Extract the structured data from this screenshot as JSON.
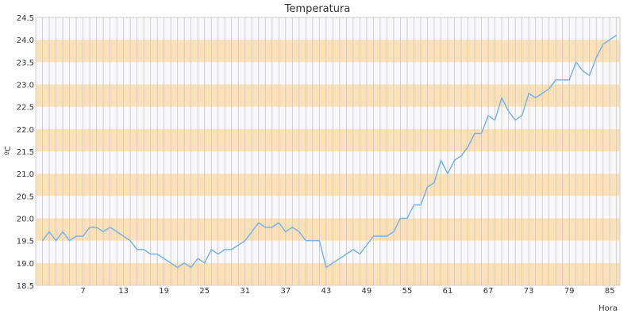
{
  "chart_data": {
    "type": "line",
    "title": "Temperatura",
    "xlabel": "Hora",
    "ylabel": "ºC",
    "ylim": [
      18.5,
      24.5
    ],
    "xlim": [
      0,
      86.5
    ],
    "yticks": [
      "18.5",
      "19.0",
      "19.5",
      "20.0",
      "20.5",
      "21.0",
      "21.5",
      "22.0",
      "22.5",
      "23.0",
      "23.5",
      "24.0",
      "24.5"
    ],
    "xticks": [
      7,
      13,
      19,
      25,
      31,
      37,
      43,
      49,
      55,
      61,
      67,
      73,
      79,
      85
    ],
    "grid": true,
    "colors": {
      "line": "#7ab3e6",
      "band_a": "#fce0b8",
      "band_b": "#f8f8fb",
      "vgrid": "#c8c8c8",
      "frame": "#cccccc"
    },
    "series": [
      {
        "x": [
          1,
          2,
          3,
          4,
          5,
          6,
          7,
          8,
          9,
          10,
          11,
          12,
          13,
          14,
          15,
          16,
          17,
          18,
          19,
          20,
          21,
          22,
          23,
          24,
          25,
          26,
          27,
          28,
          29,
          30,
          31,
          32,
          33,
          34,
          35,
          36,
          37,
          38,
          39,
          40,
          41,
          42,
          43,
          44,
          45,
          46,
          47,
          48,
          49,
          50,
          51,
          52,
          53,
          54,
          55,
          56,
          57,
          58,
          59,
          60,
          61,
          62,
          63,
          64,
          65,
          66,
          67,
          68,
          69,
          70,
          71,
          72,
          73,
          74,
          75,
          76,
          77,
          78,
          79,
          80,
          81,
          82,
          83,
          84,
          85,
          86
        ],
        "values": [
          19.5,
          19.7,
          19.5,
          19.7,
          19.5,
          19.6,
          19.6,
          19.8,
          19.8,
          19.7,
          19.8,
          19.7,
          19.6,
          19.5,
          19.3,
          19.3,
          19.2,
          19.2,
          19.1,
          19.0,
          18.9,
          19.0,
          18.9,
          19.1,
          19.0,
          19.3,
          19.2,
          19.3,
          19.3,
          19.4,
          19.5,
          19.7,
          19.9,
          19.8,
          19.8,
          19.9,
          19.7,
          19.8,
          19.7,
          19.5,
          19.5,
          19.5,
          18.9,
          19.0,
          19.1,
          19.2,
          19.3,
          19.2,
          19.4,
          19.6,
          19.6,
          19.6,
          19.7,
          20.0,
          20.0,
          20.3,
          20.3,
          20.7,
          20.8,
          21.3,
          21.0,
          21.3,
          21.4,
          21.6,
          21.9,
          21.9,
          22.3,
          22.2,
          22.7,
          22.4,
          22.2,
          22.3,
          22.8,
          22.7,
          22.8,
          22.9,
          23.1,
          23.1,
          23.1,
          23.5,
          23.3,
          23.2,
          23.6,
          23.9,
          24.0,
          24.1
        ]
      }
    ]
  }
}
